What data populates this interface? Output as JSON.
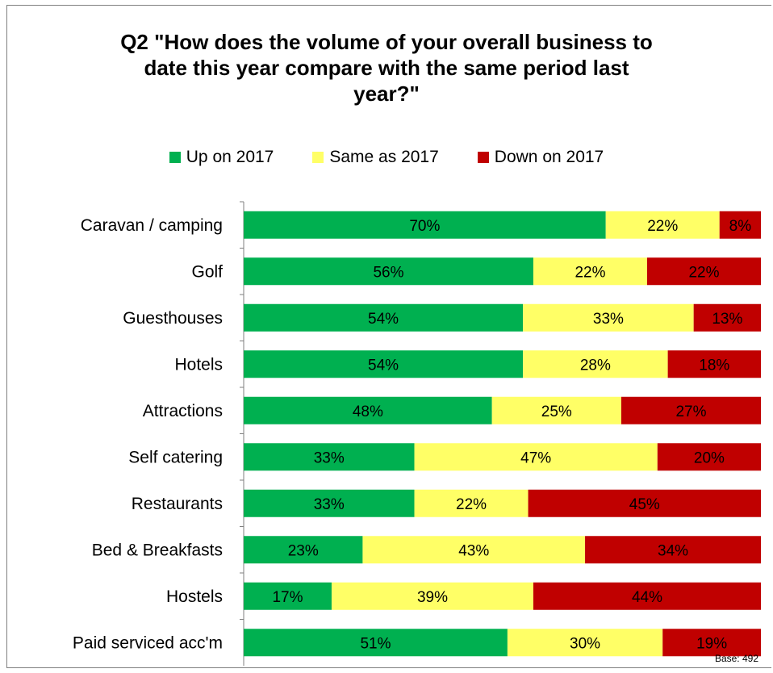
{
  "chart_data": {
    "type": "bar",
    "orientation": "horizontal",
    "stacked": true,
    "title": "Q2 \"How does the volume of your overall business to date this year compare with the same period last year?\"",
    "title_lines": [
      "Q2 \"How does the volume of your overall business to",
      "date this year compare with the same period last",
      "year?\""
    ],
    "categories": [
      "Caravan / camping",
      "Golf",
      "Guesthouses",
      "Hotels",
      "Attractions",
      "Self catering",
      "Restaurants",
      "Bed & Breakfasts",
      "Hostels",
      "Paid serviced acc'm"
    ],
    "series": [
      {
        "name": "Up on 2017",
        "color": "#00b050",
        "values": [
          70,
          56,
          54,
          54,
          48,
          33,
          33,
          23,
          17,
          51
        ]
      },
      {
        "name": "Same as 2017",
        "color": "#ffff66",
        "values": [
          22,
          22,
          33,
          28,
          25,
          47,
          22,
          43,
          39,
          30
        ]
      },
      {
        "name": "Down on 2017",
        "color": "#c00000",
        "values": [
          8,
          22,
          13,
          18,
          27,
          20,
          45,
          34,
          44,
          19
        ]
      }
    ],
    "value_suffix": "%",
    "xlim": [
      0,
      100
    ],
    "legend_position": "top",
    "grid": false,
    "footnote": "Base: 492"
  }
}
